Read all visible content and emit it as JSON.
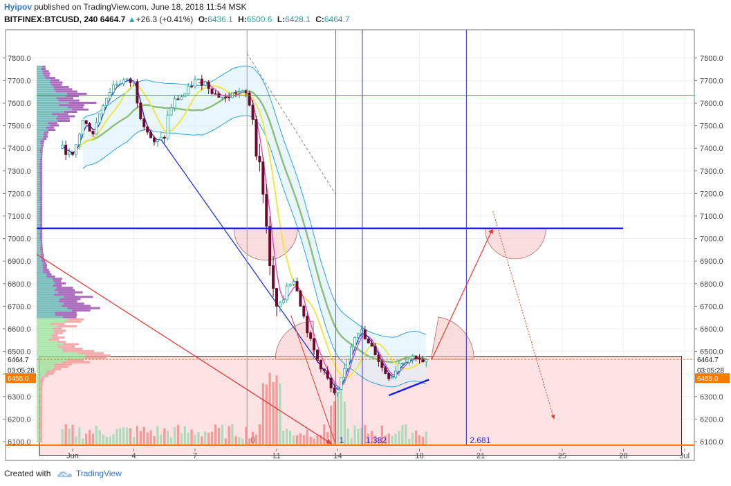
{
  "header": {
    "author": "Hyipov",
    "published": " published on TradingView.com, June 18, 2018 11:54 MSK",
    "symbol": "BITFINEX:BTCUSD, 240",
    "last": "6464.7",
    "change": "+26.3 (+0.41%)",
    "o_label": "O:",
    "o": "6436.1",
    "h_label": "H:",
    "h": "6500.6",
    "l_label": "L:",
    "l": "6428.1",
    "c_label": "C:",
    "c": "6464.7"
  },
  "footer": {
    "created_with": "Created with",
    "brand": "TradingView"
  },
  "colors": {
    "bull": "#26a69a",
    "bear": "#6d0b2e",
    "up_arrow": "#26a69a",
    "hline": "#1a1aff",
    "red": "#e53935",
    "fib_blue": "#3030d0",
    "price_tag": "#f57c00",
    "zone": "#fde3e3"
  },
  "chart_data": {
    "type": "candlestick",
    "ylim": [
      6020,
      7860
    ],
    "y_ticks": [
      "6100.0",
      "6200.0",
      "6300.0",
      "6400.0",
      "6500.0",
      "6600.0",
      "6700.0",
      "6800.0",
      "6900.0",
      "7000.0",
      "7100.0",
      "7200.0",
      "7300.0",
      "7400.0",
      "7500.0",
      "7600.0",
      "7700.0",
      "7800.0"
    ],
    "x_ticks": [
      {
        "label": "Jun",
        "day": 1
      },
      {
        "label": "4",
        "day": 4
      },
      {
        "label": "7",
        "day": 7
      },
      {
        "label": "11",
        "day": 11
      },
      {
        "label": "14",
        "day": 14
      },
      {
        "label": "18",
        "day": 18
      },
      {
        "label": "21",
        "day": 21
      },
      {
        "label": "25",
        "day": 25
      },
      {
        "label": "28",
        "day": 28
      },
      {
        "label": "Jul",
        "day": 31
      }
    ],
    "current_price": 6464.7,
    "current_price_label": "6464.7",
    "countdown": "03:05:28",
    "support_level": 6455.0,
    "support_label": "6455.0",
    "resistance_level": 7045,
    "red_level": 7635,
    "fib_labels": [
      {
        "text": "0",
        "day": 9.55
      },
      {
        "text": "1",
        "day": 13.9
      },
      {
        "text": "1.382",
        "day": 15.2
      },
      {
        "text": "2.681",
        "day": 20.3
      }
    ],
    "close_path": [
      [
        0.5,
        7400
      ],
      [
        1.0,
        7360
      ],
      [
        1.5,
        7520
      ],
      [
        2.0,
        7470
      ],
      [
        2.5,
        7600
      ],
      [
        3.0,
        7680
      ],
      [
        3.5,
        7700
      ],
      [
        4.0,
        7690
      ],
      [
        4.3,
        7550
      ],
      [
        4.7,
        7470
      ],
      [
        5.0,
        7420
      ],
      [
        5.5,
        7450
      ],
      [
        5.7,
        7560
      ],
      [
        6.0,
        7610
      ],
      [
        6.5,
        7640
      ],
      [
        7.0,
        7700
      ],
      [
        7.5,
        7690
      ],
      [
        8.0,
        7640
      ],
      [
        8.5,
        7620
      ],
      [
        9.0,
        7650
      ],
      [
        9.5,
        7640
      ],
      [
        9.8,
        7560
      ],
      [
        10.0,
        7400
      ],
      [
        10.3,
        7250
      ],
      [
        10.6,
        6950
      ],
      [
        10.9,
        6700
      ],
      [
        11.2,
        6680
      ],
      [
        11.5,
        6800
      ],
      [
        11.9,
        6820
      ],
      [
        12.2,
        6700
      ],
      [
        12.6,
        6560
      ],
      [
        13.0,
        6460
      ],
      [
        13.4,
        6400
      ],
      [
        13.8,
        6300
      ],
      [
        14.0,
        6320
      ],
      [
        14.4,
        6440
      ],
      [
        14.8,
        6570
      ],
      [
        15.1,
        6600
      ],
      [
        15.4,
        6540
      ],
      [
        15.8,
        6500
      ],
      [
        16.2,
        6420
      ],
      [
        16.6,
        6380
      ],
      [
        17.0,
        6450
      ],
      [
        17.5,
        6470
      ],
      [
        17.9,
        6480
      ],
      [
        18.2,
        6440
      ],
      [
        18.4,
        6464.7
      ]
    ]
  }
}
